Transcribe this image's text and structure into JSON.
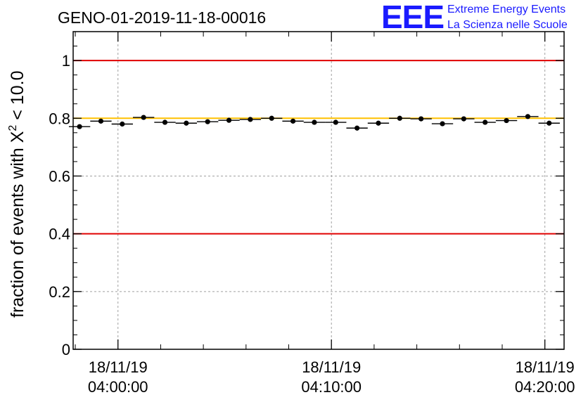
{
  "chart_data": {
    "type": "scatter",
    "title": "GENO-01-2019-11-18-00016",
    "ylabel_prefix": "fraction of events with ",
    "ylabel_chi": "X",
    "ylabel_sup": "2",
    "ylabel_suffix": " < 10.0",
    "xlabel": "",
    "ylim": [
      0,
      1.1
    ],
    "xlim_minutes": [
      -2.1,
      20.9
    ],
    "y_ticks": [
      {
        "value": 0,
        "label": "0"
      },
      {
        "value": 0.2,
        "label": "0.2"
      },
      {
        "value": 0.4,
        "label": "0.4"
      },
      {
        "value": 0.6,
        "label": "0.6"
      },
      {
        "value": 0.8,
        "label": "0.8"
      },
      {
        "value": 1.0,
        "label": "1"
      }
    ],
    "x_ticks": [
      {
        "minute": 0,
        "date": "18/11/19",
        "time": "04:00:00"
      },
      {
        "minute": 10,
        "date": "18/11/19",
        "time": "04:10:00"
      },
      {
        "minute": 20,
        "date": "18/11/19",
        "time": "04:20:00"
      }
    ],
    "x_minor_ticks_minutes": [
      -2,
      2,
      4,
      6,
      8,
      12,
      14,
      16,
      18
    ],
    "reference_lines": [
      {
        "name": "upper-red-line",
        "y": 1.0,
        "color": "#e00000"
      },
      {
        "name": "lower-red-line",
        "y": 0.4,
        "color": "#e00000"
      },
      {
        "name": "target-yellow-line",
        "y": 0.8,
        "color": "#ffc000"
      }
    ],
    "bin_width_minutes": 1,
    "series": [
      {
        "name": "fraction",
        "x_minutes": [
          -1.8,
          -0.8,
          0.2,
          1.2,
          2.2,
          3.2,
          4.2,
          5.2,
          6.2,
          7.2,
          8.2,
          9.2,
          10.2,
          11.2,
          12.2,
          13.2,
          14.2,
          15.2,
          16.2,
          17.2,
          18.2,
          19.2,
          20.2
        ],
        "values": [
          0.771,
          0.79,
          0.78,
          0.803,
          0.786,
          0.783,
          0.788,
          0.793,
          0.796,
          0.8,
          0.79,
          0.786,
          0.786,
          0.766,
          0.783,
          0.8,
          0.798,
          0.781,
          0.798,
          0.786,
          0.792,
          0.806,
          0.783
        ]
      }
    ]
  },
  "logo": {
    "mark": "EEE",
    "line1": "Extreme Energy Events",
    "line2": "La Scienza nelle Scuole"
  },
  "colors": {
    "axis": "#000000",
    "grid": "#a0a0a0",
    "logo": "#1a1aff"
  }
}
